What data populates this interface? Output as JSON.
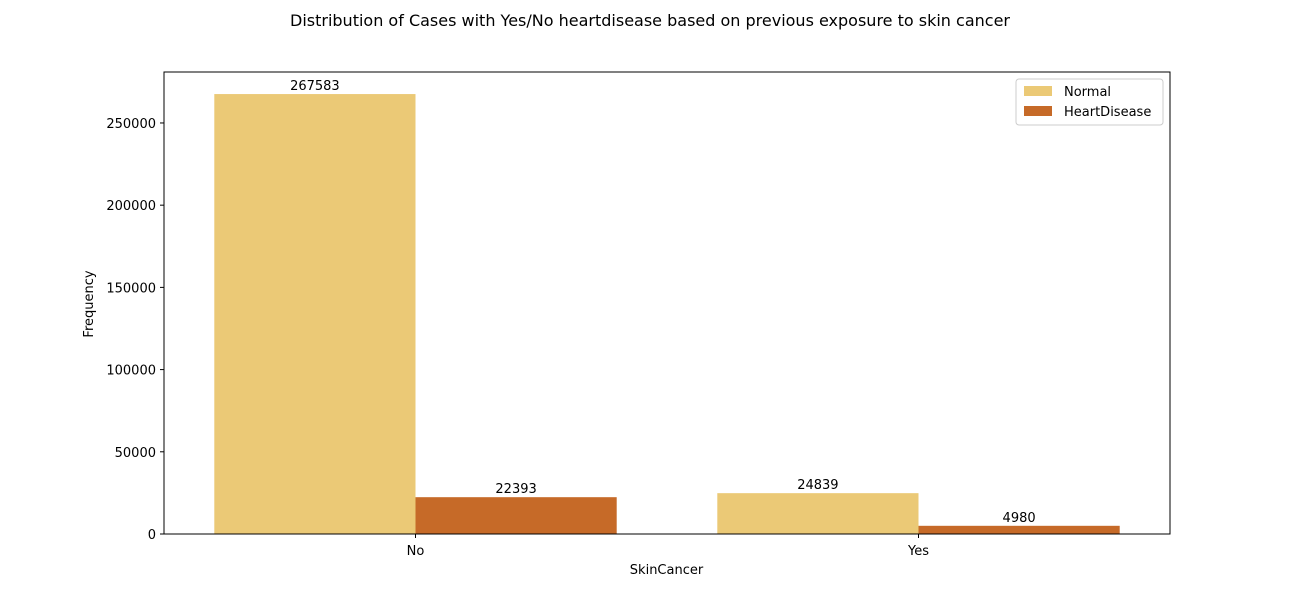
{
  "chart_data": {
    "type": "bar",
    "title": "Distribution of Cases with Yes/No heartdisease based on previous exposure to skin cancer",
    "xlabel": "SkinCancer",
    "ylabel": "Frequency",
    "categories": [
      "No",
      "Yes"
    ],
    "series": [
      {
        "name": "Normal",
        "values": [
          267583,
          24839
        ],
        "color": "#ebc976"
      },
      {
        "name": "HeartDisease",
        "values": [
          22393,
          4980
        ],
        "color": "#c66a28"
      }
    ],
    "ylim": [
      0,
      281000
    ],
    "yticks": [
      0,
      50000,
      100000,
      150000,
      200000,
      250000
    ],
    "ytick_labels": [
      "0",
      "50000",
      "100000",
      "150000",
      "200000",
      "250000"
    ],
    "data_labels": [
      [
        "267583",
        "24839"
      ],
      [
        "22393",
        "4980"
      ]
    ],
    "grid": false,
    "legend_position": "upper right"
  }
}
